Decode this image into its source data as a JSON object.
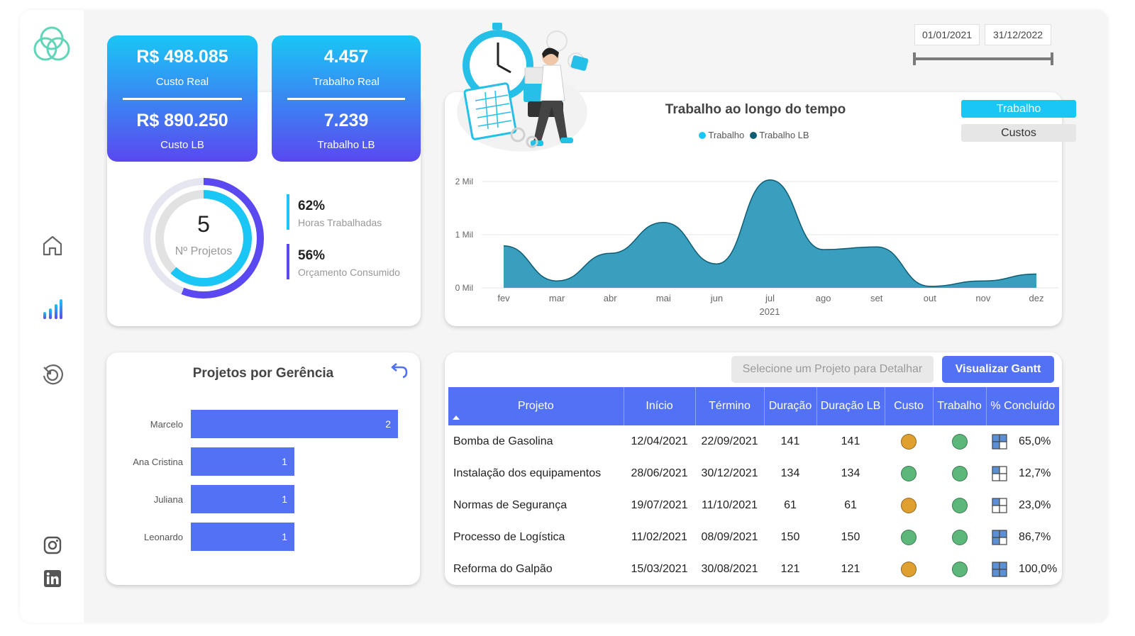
{
  "kpis": {
    "custo": {
      "real_value": "R$ 498.085",
      "real_label": "Custo Real",
      "lb_value": "R$ 890.250",
      "lb_label": "Custo LB"
    },
    "trabalho": {
      "real_value": "4.457",
      "real_label": "Trabalho Real",
      "lb_value": "7.239",
      "lb_label": "Trabalho LB"
    }
  },
  "donut": {
    "count": "5",
    "label": "Nº Projetos",
    "outer_fraction": 0.56,
    "inner_fraction": 0.62
  },
  "percent_stats": [
    {
      "value": "62%",
      "label": "Horas Trabalhadas",
      "color": "#19c6f5"
    },
    {
      "value": "56%",
      "label": "Orçamento Consumido",
      "color": "#5a48f0"
    }
  ],
  "date_filter": {
    "start": "01/01/2021",
    "end": "31/12/2022",
    "range_fraction": [
      0,
      1
    ]
  },
  "time_chart_toggles": {
    "active": "Trabalho",
    "inactive": "Custos"
  },
  "colors": {
    "accent": "#5271f5",
    "cyan": "#19c6f5",
    "purple": "#5a48f0",
    "area": "#3a9fbf",
    "green": "#5cb87a",
    "orange": "#e0a030"
  },
  "chart_data": [
    {
      "type": "area",
      "title": "Trabalho ao longo do tempo",
      "legend": [
        {
          "name": "Trabalho",
          "color": "#19c6f5"
        },
        {
          "name": "Trabalho LB",
          "color": "#0f5d72"
        }
      ],
      "legend_position": "top-center",
      "x": [
        "fev",
        "mar",
        "abr",
        "mai",
        "jun",
        "jul",
        "ago",
        "set",
        "out",
        "nov",
        "dez"
      ],
      "xlabel": "2021",
      "yticks": [
        "0 Mil",
        "1 Mil",
        "2 Mil"
      ],
      "ylim": [
        0,
        2000
      ],
      "grid": true,
      "series": [
        {
          "name": "Trabalho",
          "values": [
            790,
            130,
            650,
            1230,
            450,
            2030,
            720,
            770,
            30,
            130,
            260
          ]
        }
      ]
    },
    {
      "type": "bar",
      "orientation": "horizontal",
      "title": "Projetos por Gerência",
      "categories": [
        "Marcelo",
        "Ana Cristina",
        "Juliana",
        "Leonardo"
      ],
      "values": [
        2,
        1,
        1,
        1
      ],
      "xlim": [
        0,
        2
      ]
    }
  ],
  "table": {
    "placeholder_button": "Selecione um Projeto para Detalhar",
    "gantt_button": "Visualizar Gantt",
    "headers": [
      "Projeto",
      "Início",
      "Término",
      "Duração",
      "Duração LB",
      "Custo",
      "Trabalho",
      "% Concluído"
    ],
    "rows": [
      {
        "projeto": "Bomba de Gasolina",
        "inicio": "12/04/2021",
        "termino": "22/09/2021",
        "duracao": "141",
        "duracao_lb": "141",
        "custo": "orange",
        "trabalho": "green",
        "concluido": "65,0%",
        "fill": 0.65
      },
      {
        "projeto": "Instalação dos equipamentos",
        "inicio": "28/06/2021",
        "termino": "30/12/2021",
        "duracao": "134",
        "duracao_lb": "134",
        "custo": "green",
        "trabalho": "green",
        "concluido": "12,7%",
        "fill": 0.127
      },
      {
        "projeto": "Normas de Segurança",
        "inicio": "19/07/2021",
        "termino": "11/10/2021",
        "duracao": "61",
        "duracao_lb": "61",
        "custo": "orange",
        "trabalho": "green",
        "concluido": "23,0%",
        "fill": 0.23
      },
      {
        "projeto": "Processo de Logística",
        "inicio": "11/02/2021",
        "termino": "08/09/2021",
        "duracao": "150",
        "duracao_lb": "150",
        "custo": "green",
        "trabalho": "green",
        "concluido": "86,7%",
        "fill": 0.867
      },
      {
        "projeto": "Reforma do Galpão",
        "inicio": "15/03/2021",
        "termino": "30/08/2021",
        "duracao": "121",
        "duracao_lb": "121",
        "custo": "orange",
        "trabalho": "green",
        "concluido": "100,0%",
        "fill": 1.0
      }
    ]
  },
  "nav": {
    "icons": [
      "logo-icon",
      "home-icon",
      "chart-icon",
      "time-icon",
      "instagram-icon",
      "linkedin-icon"
    ]
  }
}
